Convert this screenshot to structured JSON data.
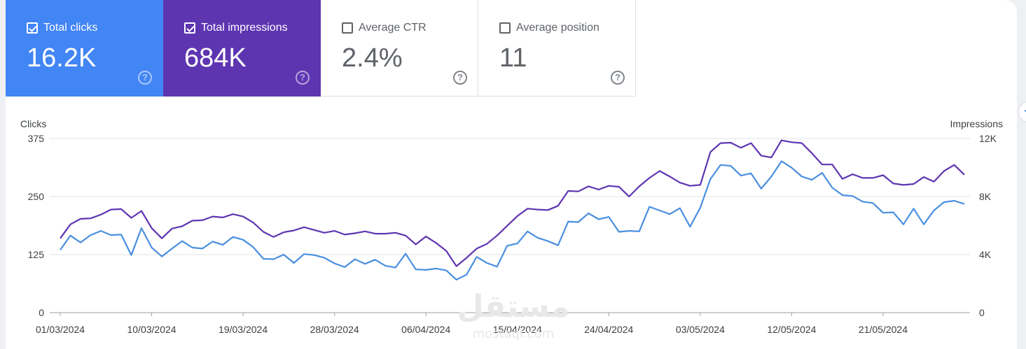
{
  "cards": [
    {
      "label": "Total clicks",
      "value": "16.2K",
      "selected": true,
      "color": "#4285f4"
    },
    {
      "label": "Total impressions",
      "value": "684K",
      "selected": true,
      "color": "#5e35b1"
    },
    {
      "label": "Average CTR",
      "value": "2.4%",
      "selected": false
    },
    {
      "label": "Average position",
      "value": "11",
      "selected": false
    }
  ],
  "help_glyph": "?",
  "watermark": {
    "arabic": "مستقل",
    "latin": "mostaql.com"
  },
  "chart_data": {
    "type": "line",
    "left_axis": {
      "label": "Clicks",
      "ticks": [
        "375",
        "250",
        "125",
        "0"
      ],
      "range": [
        0,
        375
      ]
    },
    "right_axis": {
      "label": "Impressions",
      "ticks": [
        "12K",
        "8K",
        "4K",
        "0"
      ],
      "range": [
        0,
        12000
      ]
    },
    "x_tick_labels": [
      "01/03/2024",
      "10/03/2024",
      "19/03/2024",
      "28/03/2024",
      "06/04/2024",
      "15/04/2024",
      "24/04/2024",
      "03/05/2024",
      "12/05/2024",
      "21/05/2024"
    ],
    "x_tick_every": 9,
    "series": [
      {
        "name": "Clicks",
        "axis": "left",
        "color": "#4a8fe0",
        "values": [
          135,
          166,
          151,
          167,
          176,
          167,
          168,
          124,
          182,
          140,
          121,
          138,
          154,
          140,
          138,
          153,
          146,
          163,
          157,
          141,
          116,
          115,
          125,
          107,
          126,
          124,
          118,
          106,
          98,
          115,
          105,
          114,
          101,
          97,
          127,
          93,
          92,
          95,
          91,
          71,
          82,
          120,
          107,
          99,
          144,
          149,
          175,
          161,
          154,
          145,
          196,
          195,
          214,
          201,
          206,
          174,
          176,
          175,
          228,
          220,
          212,
          225,
          185,
          226,
          288,
          318,
          316,
          295,
          300,
          267,
          293,
          326,
          312,
          293,
          286,
          301,
          269,
          253,
          251,
          239,
          236,
          215,
          216,
          190,
          224,
          190,
          220,
          238,
          241,
          234
        ]
      },
      {
        "name": "Impressions",
        "axis": "left",
        "color": "#5e35b1",
        "values": [
          160,
          190,
          202,
          203,
          211,
          222,
          223,
          204,
          219,
          182,
          160,
          181,
          186,
          198,
          199,
          207,
          205,
          212,
          207,
          194,
          174,
          163,
          173,
          177,
          184,
          178,
          172,
          176,
          168,
          171,
          175,
          170,
          170,
          172,
          166,
          147,
          164,
          150,
          133,
          100,
          118,
          138,
          148,
          166,
          187,
          208,
          224,
          222,
          221,
          230,
          262,
          261,
          272,
          265,
          273,
          271,
          250,
          272,
          290,
          305,
          293,
          280,
          273,
          275,
          346,
          365,
          366,
          355,
          365,
          338,
          334,
          371,
          367,
          365,
          343,
          319,
          319,
          288,
          298,
          290,
          290,
          296,
          278,
          275,
          277,
          292,
          282,
          305,
          318,
          297
        ]
      }
    ]
  }
}
